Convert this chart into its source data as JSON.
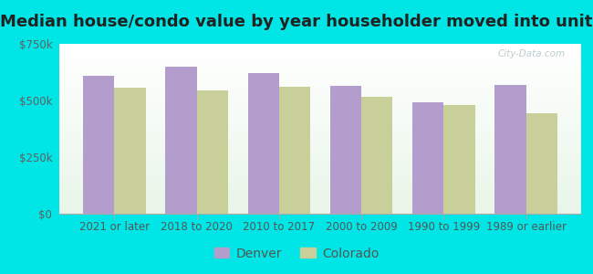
{
  "title": "Median house/condo value by year householder moved into unit",
  "categories": [
    "2021 or later",
    "2018 to 2020",
    "2010 to 2017",
    "2000 to 2009",
    "1990 to 1999",
    "1989 or earlier"
  ],
  "denver_values": [
    610000,
    650000,
    620000,
    565000,
    490000,
    570000
  ],
  "colorado_values": [
    555000,
    545000,
    560000,
    515000,
    480000,
    445000
  ],
  "denver_color": "#b39dcc",
  "colorado_color": "#c8cf98",
  "background_color": "#00e5e5",
  "plot_bg_top": "#ffffff",
  "plot_bg_bottom": "#e8f5e8",
  "ylim": [
    0,
    750000
  ],
  "yticks": [
    0,
    250000,
    500000,
    750000
  ],
  "ytick_labels": [
    "$0",
    "$250k",
    "$500k",
    "$750k"
  ],
  "legend_labels": [
    "Denver",
    "Colorado"
  ],
  "bar_width": 0.38,
  "title_fontsize": 13,
  "tick_fontsize": 8.5,
  "legend_fontsize": 10,
  "watermark": "City-Data.com",
  "watermark_color": "#b0c4c4"
}
